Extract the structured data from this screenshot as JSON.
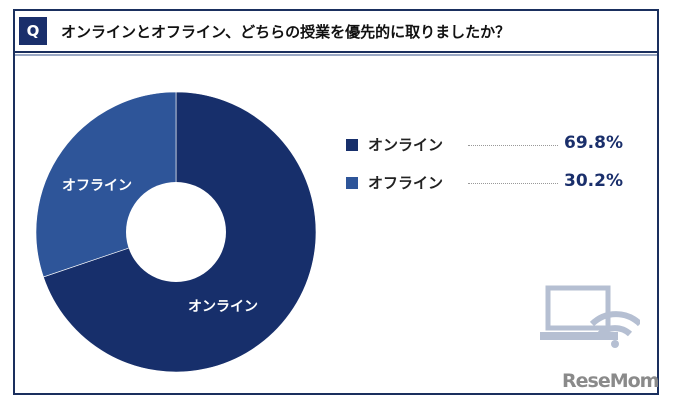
{
  "header": {
    "q_label": "Q",
    "question": "オンラインとオフライン、どちらの授業を優先的に取りましたか？"
  },
  "chart_data": {
    "type": "pie",
    "title": "オンラインとオフライン、どちらの授業を優先的に取りましたか？",
    "donut": true,
    "slices": [
      {
        "label": "オンライン",
        "value": 69.8,
        "display": "69.8%",
        "color": "#172f6b"
      },
      {
        "label": "オフライン",
        "value": 30.2,
        "display": "30.2%",
        "color": "#2e5599"
      }
    ],
    "legend_placement": "right"
  },
  "logo": "ReseMom"
}
